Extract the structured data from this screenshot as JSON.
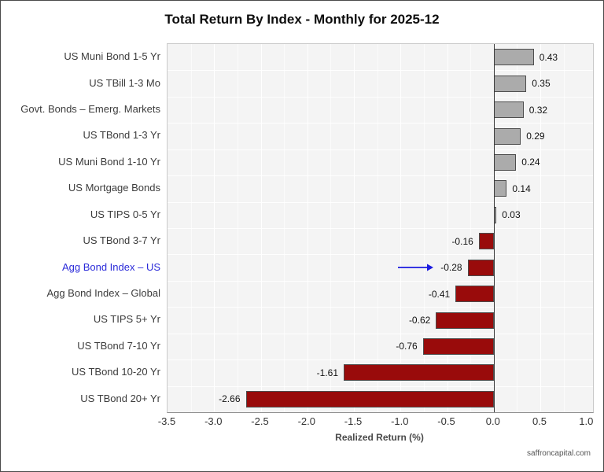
{
  "footer": {
    "text": "saffroncapital.com"
  },
  "chart_data": {
    "type": "bar",
    "orientation": "horizontal",
    "title": "Total Return By Index - Monthly for 2025-12",
    "xlabel": "Realized Return (%)",
    "xlim": [
      -3.5,
      1.065
    ],
    "x_ticks": [
      -3.5,
      -3.0,
      -2.5,
      -2.0,
      -1.5,
      -1.0,
      -0.5,
      0.0,
      0.5,
      1.0
    ],
    "minor_grid_step": 0.25,
    "grid": true,
    "categories": [
      "US Muni Bond 1-5 Yr",
      "US TBill 1-3 Mo",
      "Govt. Bonds – Emerg. Markets",
      "US TBond 1-3 Yr",
      "US Muni Bond 1-10 Yr",
      "US Mortgage Bonds",
      "US TIPS 0-5 Yr",
      "US TBond 3-7 Yr",
      "Agg Bond Index – US",
      "Agg Bond Index – Global",
      "US TIPS 5+ Yr",
      "US TBond 7-10 Yr",
      "US TBond 10-20 Yr",
      "US TBond 20+ Yr"
    ],
    "values": [
      0.43,
      0.35,
      0.32,
      0.29,
      0.24,
      0.14,
      0.03,
      -0.16,
      -0.28,
      -0.41,
      -0.62,
      -0.76,
      -1.61,
      -2.66
    ],
    "highlight_index": 8,
    "highlight_annotation": "arrow-pointing-right-at-value",
    "colors": {
      "positive_bar": "#ababab",
      "negative_bar": "#990b0b",
      "bar_border": "#4d4d4d",
      "highlight_label": "#2b2bd9",
      "arrow": "#1b1be0",
      "plot_bg": "#f4f4f4",
      "grid_major": "#ffffff",
      "grid_minor": "rgba(255,255,255,0.65)",
      "zero_line": "#3a3a3a"
    }
  }
}
